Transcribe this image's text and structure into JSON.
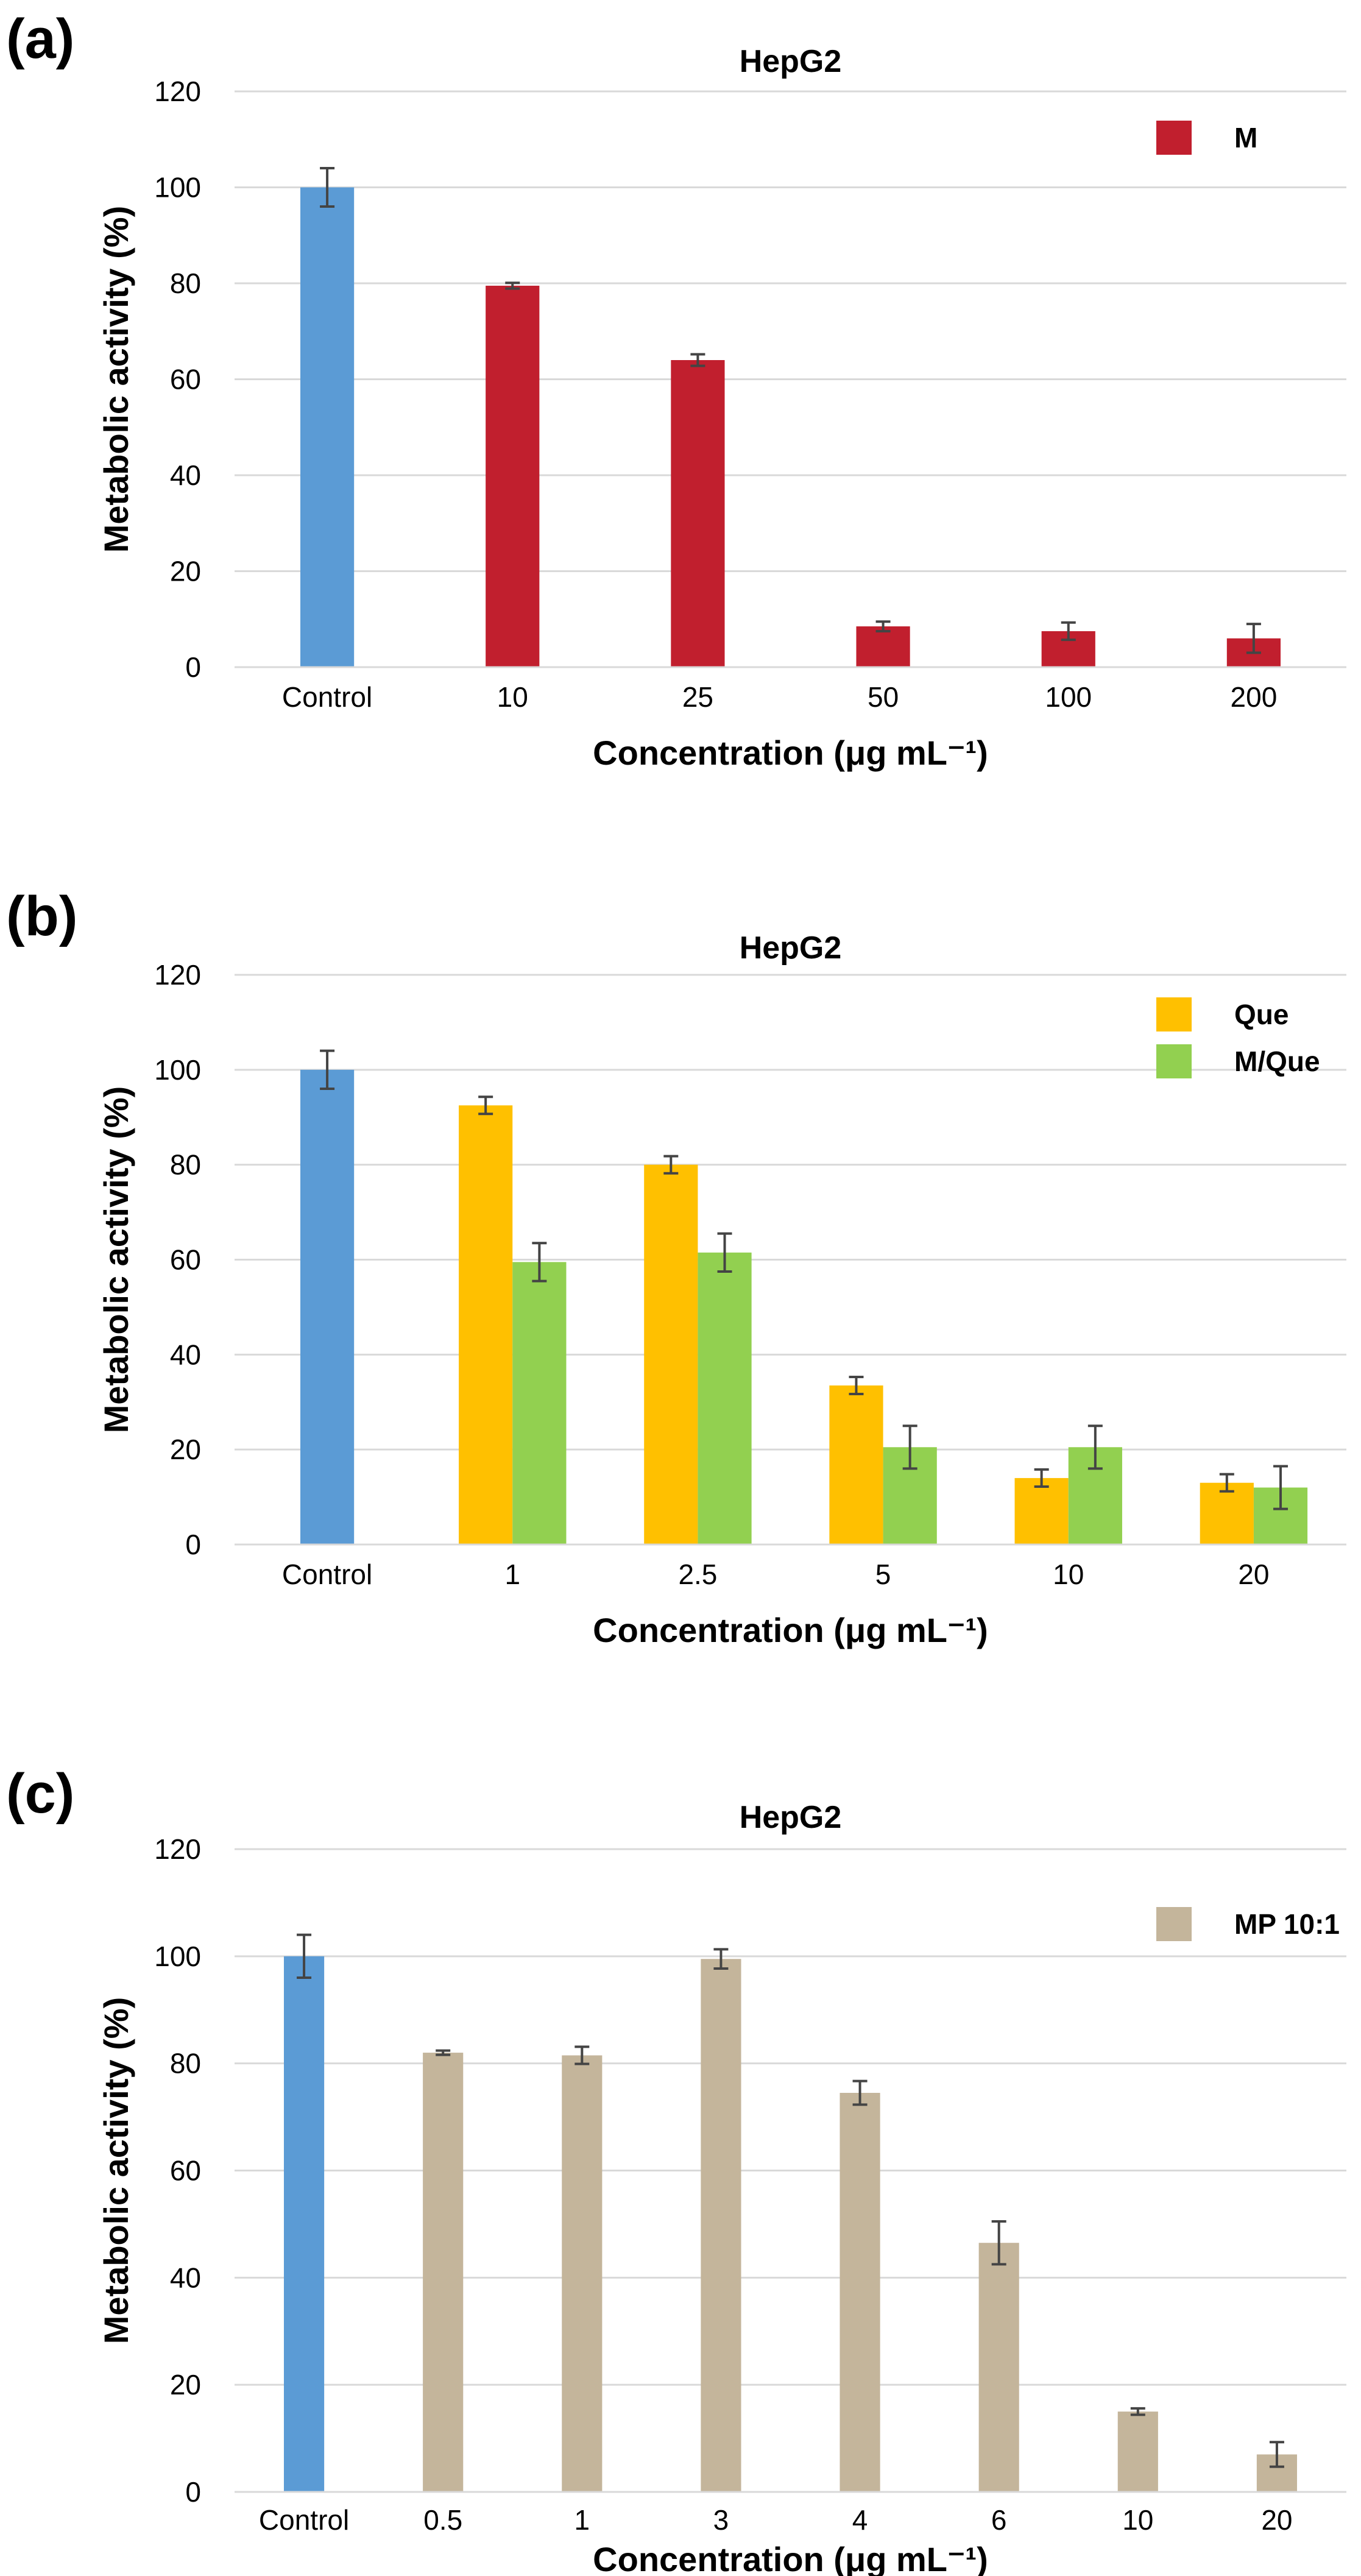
{
  "chart_data": [
    {
      "type": "bar",
      "panel_label": "(a)",
      "title": "HepG2",
      "xlabel": "Concentration (μg mL⁻¹)",
      "ylabel": "Metabolic activity (%)",
      "ylim": [
        0,
        120
      ],
      "yticks": [
        0,
        20,
        40,
        60,
        80,
        100,
        120
      ],
      "grid": true,
      "legend_position": "top-right",
      "categories": [
        "Control",
        "10",
        "25",
        "50",
        "100",
        "200"
      ],
      "control": {
        "value": 100,
        "error": 4,
        "color": "#5b9bd5"
      },
      "series": [
        {
          "name": "M",
          "color": "#c11f2e",
          "values": [
            null,
            79.5,
            64,
            8.5,
            7.5,
            6
          ],
          "errors": [
            null,
            0.6,
            1.2,
            1.0,
            1.8,
            3.0
          ]
        }
      ]
    },
    {
      "type": "bar",
      "panel_label": "(b)",
      "title": "HepG2",
      "xlabel": "Concentration (μg mL⁻¹)",
      "ylabel": "Metabolic activity (%)",
      "ylim": [
        0,
        120
      ],
      "yticks": [
        0,
        20,
        40,
        60,
        80,
        100,
        120
      ],
      "grid": true,
      "legend_position": "top-right",
      "categories": [
        "Control",
        "1",
        "2.5",
        "5",
        "10",
        "20"
      ],
      "control": {
        "value": 100,
        "error": 4,
        "color": "#5b9bd5"
      },
      "series": [
        {
          "name": "Que",
          "color": "#ffc000",
          "values": [
            null,
            92.5,
            80,
            33.5,
            14,
            13
          ],
          "errors": [
            null,
            1.8,
            1.8,
            1.8,
            1.8,
            1.8
          ]
        },
        {
          "name": "M/Que",
          "color": "#92d050",
          "values": [
            null,
            59.5,
            61.5,
            20.5,
            20.5,
            12
          ],
          "errors": [
            null,
            4.0,
            4.0,
            4.5,
            4.5,
            4.5
          ]
        }
      ]
    },
    {
      "type": "bar",
      "panel_label": "(c)",
      "title": "HepG2",
      "xlabel": "Concentration (μg mL⁻¹)",
      "ylabel": "Metabolic activity (%)",
      "ylim": [
        0,
        120
      ],
      "yticks": [
        0,
        20,
        40,
        60,
        80,
        100,
        120
      ],
      "grid": true,
      "legend_position": "top-right",
      "categories": [
        "Control",
        "0.5",
        "1",
        "3",
        "4",
        "6",
        "10",
        "20"
      ],
      "control": {
        "value": 100,
        "error": 4,
        "color": "#5b9bd5"
      },
      "series": [
        {
          "name": "MP 10:1",
          "color": "#c4b59b",
          "values": [
            null,
            82,
            81.5,
            99.5,
            74.5,
            46.5,
            15,
            7
          ],
          "errors": [
            null,
            0.4,
            1.6,
            1.8,
            2.2,
            4.0,
            0.6,
            2.3
          ]
        }
      ]
    }
  ]
}
